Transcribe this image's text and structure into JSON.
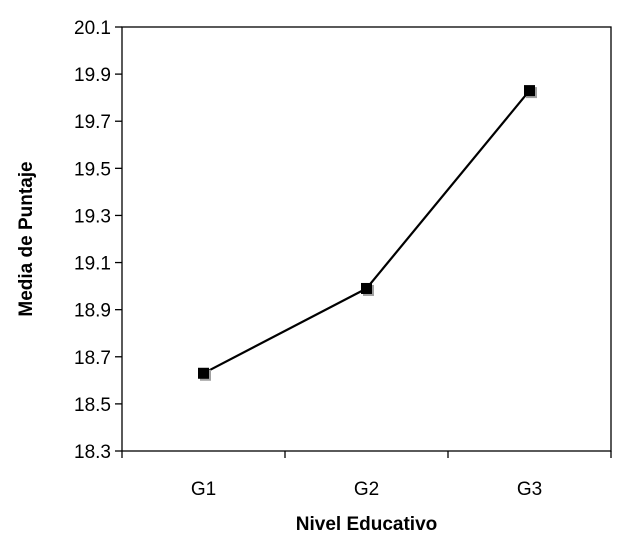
{
  "chart_data": {
    "type": "line",
    "categories": [
      "G1",
      "G2",
      "G3"
    ],
    "series": [
      {
        "values": [
          18.63,
          18.99,
          19.83
        ]
      }
    ],
    "title": "",
    "xlabel": "Nivel Educativo",
    "ylabel": "Media de Puntaje",
    "ylim": [
      18.3,
      20.1
    ],
    "yticks": [
      "18.3",
      "18.5",
      "18.7",
      "18.9",
      "19.1",
      "19.3",
      "19.5",
      "19.7",
      "19.9",
      "20.1"
    ],
    "grid": false,
    "legend": "none",
    "line_color": "#000000",
    "marker": "square",
    "marker_color": "#000000",
    "marker_shadow_color": "#a0a0a0"
  }
}
